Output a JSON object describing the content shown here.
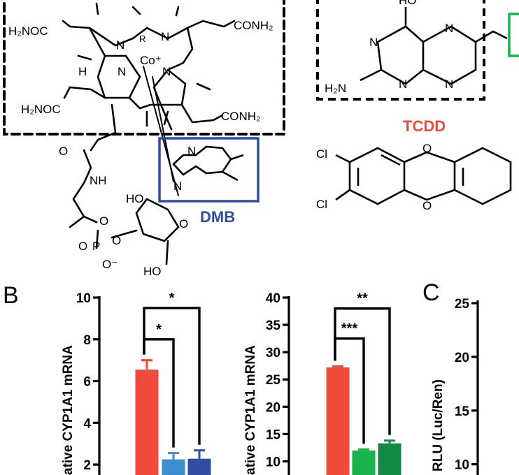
{
  "structures": {
    "cobalamin": {
      "h2noc_top": "H₂NOC",
      "conh2_top": "CONH₂",
      "r": "R",
      "co": "Co⁺",
      "h": "H",
      "h2noc_bottom": "H₂NOC",
      "conh2_bottom": "CONH₂",
      "n1": "N",
      "n2": "N",
      "n3": "N",
      "n4": "N",
      "o_amide": "O",
      "nh": "NH",
      "o_ester": "O",
      "o_p": "O",
      "p": "P",
      "o_minus": "O⁻",
      "o_bridge": "O",
      "ho": "HO",
      "ho2": "HO",
      "o_ring": "O"
    },
    "dmb": {
      "label": "DMB",
      "n_a": "N",
      "n_b": "N",
      "color": "#2f4ea3"
    },
    "pterin": {
      "ho": "HO",
      "n1": "N",
      "n2": "N",
      "n3": "N",
      "n4": "N",
      "h2n": "H₂N"
    },
    "tcdd": {
      "label": "TCDD",
      "cl1": "Cl",
      "cl2": "Cl",
      "o1": "O",
      "o2": "O",
      "color": "#f04b3a"
    }
  },
  "panels": {
    "b": "B",
    "c": "C"
  },
  "chart_data": [
    {
      "type": "bar",
      "ylabel": "ative CYP1A1 mRNA",
      "ylim": [
        1.5,
        10
      ],
      "yticks": [
        "2",
        "4",
        "6",
        "8",
        "10"
      ],
      "ytick_values": [
        2,
        4,
        6,
        8,
        10
      ],
      "categories": [
        "",
        "",
        ""
      ],
      "values": [
        6.55,
        2.25,
        2.28
      ],
      "errors": [
        0.45,
        0.3,
        0.4
      ],
      "colors": [
        "#f04b3a",
        "#3b8fce",
        "#2f4ea3"
      ],
      "significance": [
        {
          "from": 0,
          "to": 1,
          "label": "*",
          "y": 8.0
        },
        {
          "from": 0,
          "to": 2,
          "label": "*",
          "y": 9.5
        }
      ]
    },
    {
      "type": "bar",
      "ylabel": "ative CYP1A1 mRNA",
      "ylim": [
        7.5,
        40
      ],
      "yticks": [
        "10",
        "15",
        "20",
        "25",
        "30",
        "35",
        "40"
      ],
      "ytick_values": [
        10,
        15,
        20,
        25,
        30,
        35,
        40
      ],
      "categories": [
        "",
        "",
        ""
      ],
      "values": [
        27.2,
        12.0,
        13.3
      ],
      "errors": [
        0.2,
        0.2,
        0.5
      ],
      "colors": [
        "#f04b3a",
        "#1ab24b",
        "#128a46"
      ],
      "significance": [
        {
          "from": 0,
          "to": 1,
          "label": "***",
          "y": 32.5
        },
        {
          "from": 0,
          "to": 2,
          "label": "**",
          "y": 38.0
        }
      ]
    },
    {
      "type": "bar",
      "ylabel": "RLU (Luc/Ren)",
      "ylim": [
        9,
        25
      ],
      "yticks": [
        "10",
        "15",
        "20",
        "25"
      ],
      "ytick_values": [
        10,
        15,
        20,
        25
      ],
      "categories": [],
      "values": []
    }
  ]
}
